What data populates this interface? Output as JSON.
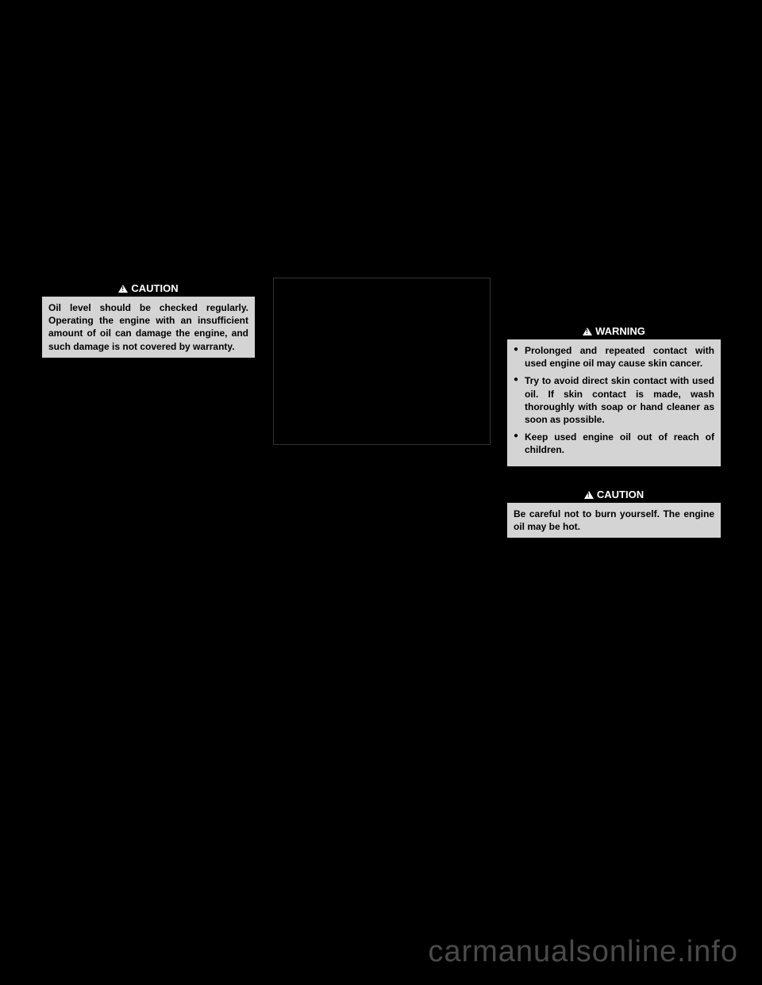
{
  "box1": {
    "header": "CAUTION",
    "body": "Oil level should be checked regularly. Operating the engine with an insufficient amount of oil can damage the engine, and such damage is not covered by warranty."
  },
  "box2": {
    "header": "WARNING",
    "items": [
      "Prolonged and repeated contact with used engine oil may cause skin cancer.",
      "Try to avoid direct skin contact with used oil. If skin contact is made, wash thoroughly with soap or hand cleaner as soon as possible.",
      "Keep used engine oil out of reach of children."
    ]
  },
  "box3": {
    "header": "CAUTION",
    "body": "Be careful not to burn yourself. The engine oil may be hot."
  },
  "watermark": "carmanualsonline.info"
}
